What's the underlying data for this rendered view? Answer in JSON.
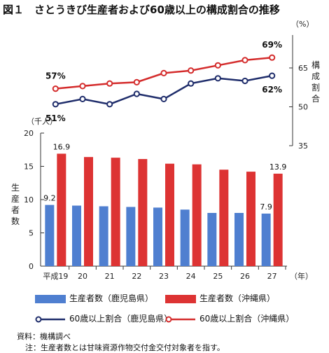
{
  "title": "図１　さとうきび生産者および60歳以上の構成割合の推移",
  "colors": {
    "kagoshima_bar": "#4f7fd0",
    "okinawa_bar": "#dd3333",
    "kagoshima_line": "#1f2d6b",
    "okinawa_line": "#d42c2c"
  },
  "chart_data": [
    {
      "type": "line",
      "categories": [
        "平成19",
        "20",
        "21",
        "22",
        "23",
        "24",
        "25",
        "26",
        "27"
      ],
      "ylabel": "構成割合",
      "yunit": "（%）",
      "ylim": [
        35,
        75
      ],
      "yticks": [
        35,
        50,
        65
      ],
      "series": [
        {
          "name": "60歳以上割合（鹿児島県）",
          "values": [
            51,
            53,
            51,
            55,
            53,
            59,
            61,
            60,
            62
          ],
          "labels": {
            "first": "51%",
            "last": "62%"
          }
        },
        {
          "name": "60歳以上割合（沖縄県）",
          "values": [
            57,
            58,
            59,
            59.5,
            63,
            64,
            66,
            68,
            69
          ],
          "labels": {
            "first": "57%",
            "last": "69%"
          }
        }
      ]
    },
    {
      "type": "bar",
      "categories": [
        "平成19",
        "20",
        "21",
        "22",
        "23",
        "24",
        "25",
        "26",
        "27"
      ],
      "xunit": "（年）",
      "yunit": "（千人）",
      "ylabel": "生産者数",
      "ylim": [
        0,
        20
      ],
      "yticks": [
        0,
        5,
        10,
        15,
        20
      ],
      "series": [
        {
          "name": "生産者数（鹿児島県）",
          "values": [
            9.2,
            9.1,
            9.0,
            8.9,
            8.8,
            8.5,
            8.0,
            8.0,
            7.9
          ],
          "labels": {
            "first": "9.2",
            "last": "7.9"
          }
        },
        {
          "name": "生産者数（沖縄県）",
          "values": [
            16.9,
            16.4,
            16.3,
            16.1,
            15.4,
            15.3,
            14.5,
            14.2,
            13.9
          ],
          "labels": {
            "first": "16.9",
            "last": "13.9"
          }
        }
      ]
    }
  ],
  "legend": {
    "bar_kagoshima": "生産者数（鹿児島県）",
    "bar_okinawa": "生産者数（沖縄県）",
    "line_kagoshima": "60歳以上割合（鹿児島県）",
    "line_okinawa": "60歳以上割合（沖縄県）"
  },
  "notes": {
    "source": "資料：機構調べ",
    "note": "注：生産者数とは甘味資源作物交付金交付対象者を指す。"
  }
}
